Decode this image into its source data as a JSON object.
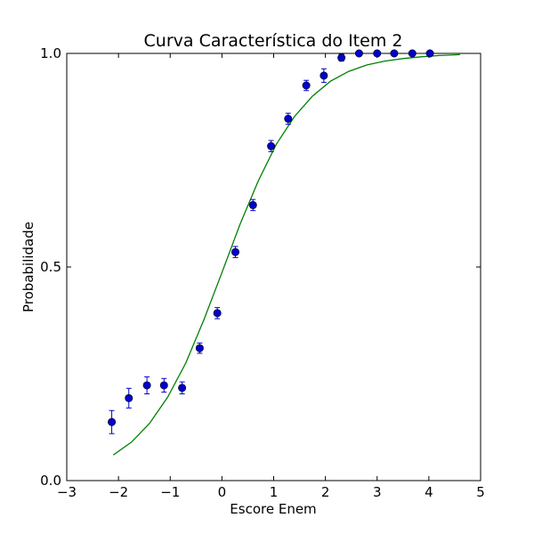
{
  "chart_data": {
    "type": "scatter",
    "title": "Curva Característica do Item 2",
    "xlabel": "Escore Enem",
    "ylabel": "Probabilidade",
    "xlim": [
      -3,
      5
    ],
    "ylim": [
      0,
      1
    ],
    "xticks": [
      -3,
      -2,
      -1,
      0,
      1,
      2,
      3,
      4,
      5
    ],
    "xtick_labels": [
      "−3",
      "−2",
      "−1",
      "0",
      "1",
      "2",
      "3",
      "4",
      "5"
    ],
    "yticks": [
      0,
      0.5,
      1
    ],
    "ytick_labels": [
      "0.0",
      "0.5",
      "1.0"
    ],
    "grid": false,
    "legend": "none",
    "colors": {
      "points": "#0000cc",
      "errorbars": "#0000cc",
      "curve": "#008000"
    },
    "series": [
      {
        "kind": "errorbar-points",
        "x": [
          -2.13,
          -1.8,
          -1.45,
          -1.12,
          -0.77,
          -0.43,
          -0.09,
          0.26,
          0.6,
          0.95,
          1.28,
          1.63,
          1.97,
          2.31,
          2.65,
          3.0,
          3.33,
          3.68,
          4.02
        ],
        "y": [
          0.137,
          0.193,
          0.223,
          0.223,
          0.217,
          0.31,
          0.392,
          0.535,
          0.645,
          0.783,
          0.847,
          0.925,
          0.948,
          0.99,
          1.0,
          1.0,
          1.0,
          1.0,
          1.0
        ],
        "yerr": [
          0.027,
          0.023,
          0.02,
          0.016,
          0.014,
          0.012,
          0.013,
          0.013,
          0.013,
          0.013,
          0.013,
          0.012,
          0.016,
          0.008,
          0.005,
          0.004,
          0.003,
          0.003,
          0.003
        ]
      },
      {
        "kind": "line",
        "x": [
          -2.1,
          -1.75,
          -1.4,
          -1.05,
          -0.7,
          -0.35,
          0.0,
          0.35,
          0.7,
          1.05,
          1.4,
          1.75,
          2.1,
          2.45,
          2.8,
          3.15,
          3.5,
          3.85,
          4.2,
          4.6
        ],
        "y": [
          0.06,
          0.09,
          0.134,
          0.195,
          0.275,
          0.376,
          0.487,
          0.6,
          0.701,
          0.787,
          0.852,
          0.9,
          0.935,
          0.958,
          0.973,
          0.982,
          0.988,
          0.992,
          0.995,
          0.997
        ]
      }
    ]
  }
}
